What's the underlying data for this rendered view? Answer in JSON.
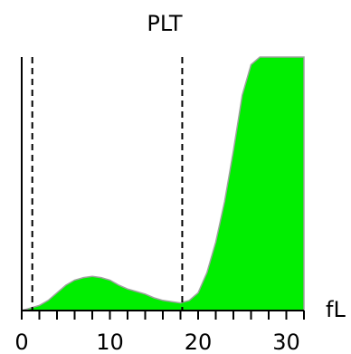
{
  "chart_data": {
    "type": "area",
    "title": "PLT",
    "xlabel": "fL",
    "ylabel": "",
    "xlim": [
      0,
      32
    ],
    "ylim": [
      0,
      1
    ],
    "xticks": [
      0,
      2,
      4,
      6,
      8,
      10,
      12,
      14,
      16,
      18,
      20,
      22,
      24,
      26,
      28,
      30,
      32
    ],
    "xtick_labels": [
      {
        "value": 0,
        "label": "0"
      },
      {
        "value": 10,
        "label": "10"
      },
      {
        "value": 20,
        "label": "20"
      },
      {
        "value": 30,
        "label": "30"
      }
    ],
    "markers": [
      1.2,
      18.2
    ],
    "series": [
      {
        "x": [
          0,
          1,
          2,
          3,
          4,
          5,
          6,
          7,
          8,
          9,
          10,
          11,
          12,
          13,
          14,
          15,
          16,
          17,
          18,
          19,
          20,
          21,
          22,
          23,
          24,
          25,
          26,
          27,
          28,
          29,
          30,
          31,
          32
        ],
        "y": [
          0.0,
          0.01,
          0.02,
          0.04,
          0.07,
          0.1,
          0.12,
          0.13,
          0.135,
          0.13,
          0.12,
          0.1,
          0.085,
          0.075,
          0.065,
          0.05,
          0.04,
          0.035,
          0.03,
          0.04,
          0.07,
          0.15,
          0.27,
          0.43,
          0.63,
          0.85,
          0.97,
          1.0,
          1.0,
          1.0,
          1.0,
          1.0,
          1.0
        ]
      }
    ],
    "fill_color": "#00ee00",
    "outline_color": "#a0a0a0",
    "axis_color": "#000000",
    "marker_color": "#000000",
    "grid": false
  }
}
